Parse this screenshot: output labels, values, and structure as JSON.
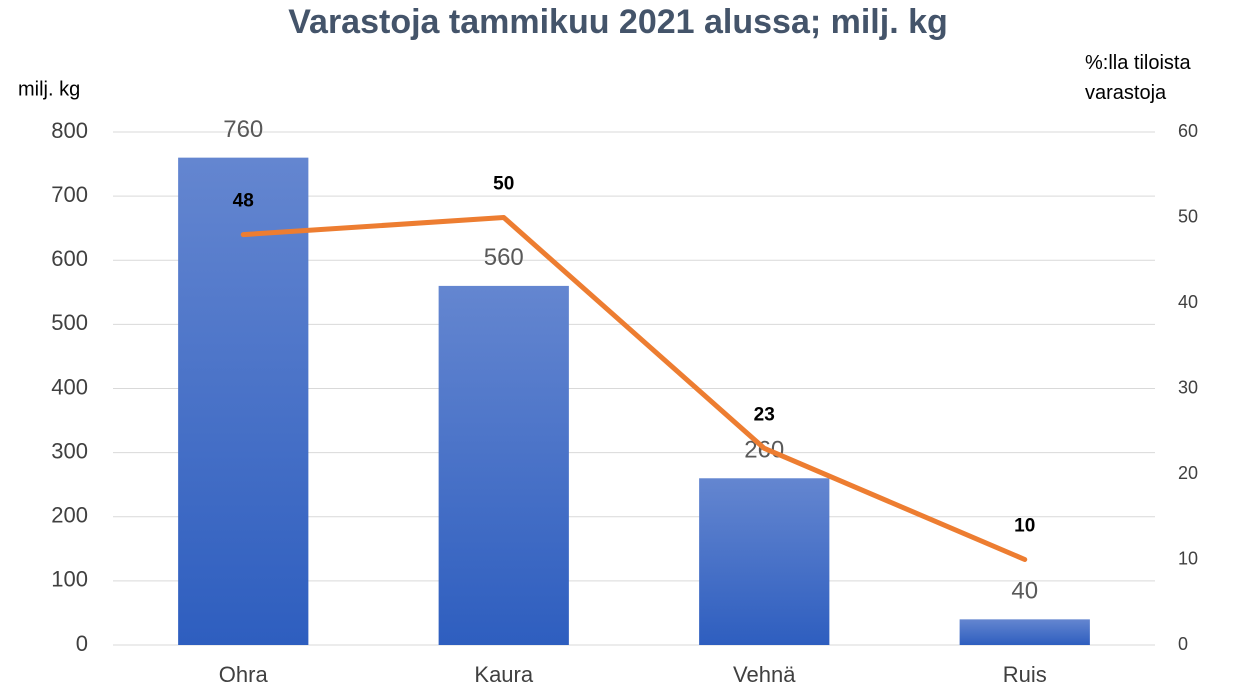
{
  "chart_data": {
    "type": "bar",
    "title": "Varastoja tammikuu 2021 alussa; milj. kg",
    "y_label": "milj. kg",
    "y2_label": "%:lla tiloista varastoja",
    "categories": [
      "Ohra",
      "Kaura",
      "Vehnä",
      "Ruis"
    ],
    "series": [
      {
        "name": "milj. kg",
        "type": "bar",
        "color": "#4472c4",
        "values": [
          760,
          560,
          260,
          40
        ]
      },
      {
        "name": "%:lla tiloista varastoja",
        "type": "line",
        "color": "#ed7d31",
        "axis": "y2",
        "values": [
          48,
          50,
          23,
          10
        ]
      }
    ],
    "ylim": [
      0,
      800
    ],
    "yticks": [
      0,
      100,
      200,
      300,
      400,
      500,
      600,
      700,
      800
    ],
    "y2lim": [
      0,
      60
    ],
    "y2ticks": [
      0,
      10,
      20,
      30,
      40,
      50,
      60
    ],
    "grid": true
  }
}
